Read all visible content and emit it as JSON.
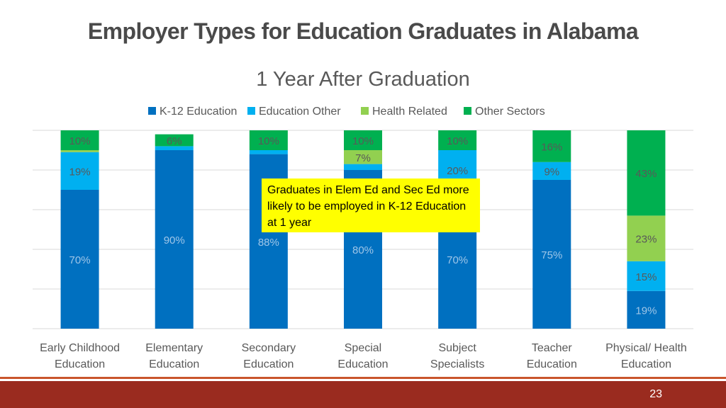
{
  "slide": {
    "title": "Employer Types for Education Graduates in Alabama",
    "page_number": "23"
  },
  "callout": {
    "text": "Graduates in Elem Ed and Sec Ed more likely to be employed in K-12 Education at 1 year"
  },
  "chart_data": {
    "type": "bar",
    "stacked": true,
    "percent_stacked": true,
    "title": "1 Year After Graduation",
    "xlabel": "",
    "ylabel": "",
    "ylim": [
      0,
      100
    ],
    "grid": true,
    "legend_position": "top",
    "categories": [
      "Early Childhood Education",
      "Elementary Education",
      "Secondary Education",
      "Special Education",
      "Subject Specialists",
      "Teacher Education",
      "Physical/ Health Education"
    ],
    "category_label_lines": [
      [
        "Early Childhood",
        "Education"
      ],
      [
        "Elementary",
        "Education"
      ],
      [
        "Secondary",
        "Education"
      ],
      [
        "Special",
        "Education"
      ],
      [
        "Subject",
        "Specialists"
      ],
      [
        "Teacher",
        "Education"
      ],
      [
        "Physical/ Health",
        "Education"
      ]
    ],
    "series": [
      {
        "name": "K-12 Education",
        "color": "#0070c0",
        "values": [
          70,
          90,
          88,
          80,
          70,
          75,
          19
        ],
        "labels": [
          "70%",
          "90%",
          "88%",
          "80%",
          "70%",
          "75%",
          "19%"
        ]
      },
      {
        "name": "Education Other",
        "color": "#00b0f0",
        "values": [
          19,
          2,
          2,
          3,
          20,
          9,
          15
        ],
        "labels": [
          "19%",
          "",
          "",
          "",
          "20%",
          "9%",
          "15%"
        ]
      },
      {
        "name": "Health Related",
        "color": "#92d050",
        "values": [
          1,
          0,
          0,
          7,
          0,
          0,
          23
        ],
        "labels": [
          "",
          "",
          "",
          "7%",
          "",
          "",
          "23%"
        ]
      },
      {
        "name": "Other Sectors",
        "color": "#00b050",
        "values": [
          10,
          6,
          10,
          10,
          10,
          16,
          43
        ],
        "labels": [
          "10%",
          "6%",
          "10%",
          "10%",
          "10%",
          "16%",
          "43%"
        ]
      }
    ]
  }
}
